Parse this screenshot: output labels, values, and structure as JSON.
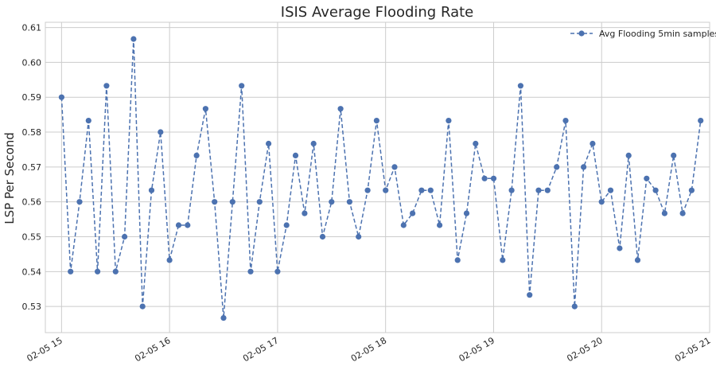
{
  "chart_data": {
    "type": "line",
    "title": "ISIS Average Flooding Rate",
    "xlabel": "",
    "ylabel": "LSP Per Second",
    "x_tick_labels": [
      "02-05 15",
      "02-05 16",
      "02-05 17",
      "02-05 18",
      "02-05 19",
      "02-05 20",
      "02-05 21"
    ],
    "y_tick_labels": [
      "0.53",
      "0.54",
      "0.55",
      "0.56",
      "0.57",
      "0.58",
      "0.59",
      "0.60",
      "0.61"
    ],
    "ylim": [
      0.5225,
      0.6115
    ],
    "xlim_hours": [
      14.85,
      21.0
    ],
    "grid": true,
    "legend_position": "top-right",
    "line_color": "#4c72b0",
    "line_style": "dashed",
    "marker": "circle",
    "series": [
      {
        "name": "Avg Flooding 5min samples",
        "x_start": "02-05 15:00",
        "x_interval_minutes": 5,
        "values": [
          0.59,
          0.54,
          0.56,
          0.5833,
          0.54,
          0.5933,
          0.54,
          0.55,
          0.6067,
          0.53,
          0.5633,
          0.58,
          0.5433,
          0.5533,
          0.5533,
          0.5733,
          0.5867,
          0.56,
          0.5267,
          0.56,
          0.5933,
          0.54,
          0.56,
          0.5767,
          0.54,
          0.5533,
          0.5733,
          0.5567,
          0.5767,
          0.55,
          0.56,
          0.5867,
          0.56,
          0.55,
          0.5633,
          0.5833,
          0.5633,
          0.57,
          0.5533,
          0.5567,
          0.5633,
          0.5633,
          0.5533,
          0.5833,
          0.5433,
          0.5567,
          0.5767,
          0.5667,
          0.5667,
          0.5433,
          0.5633,
          0.5933,
          0.5333,
          0.5633,
          0.5633,
          0.57,
          0.5833,
          0.53,
          0.57,
          0.5767,
          0.56,
          0.5633,
          0.5467,
          0.5733,
          0.5433,
          0.5667,
          0.5633,
          0.5567,
          0.5733,
          0.5567,
          0.5633,
          0.5833
        ]
      }
    ]
  }
}
